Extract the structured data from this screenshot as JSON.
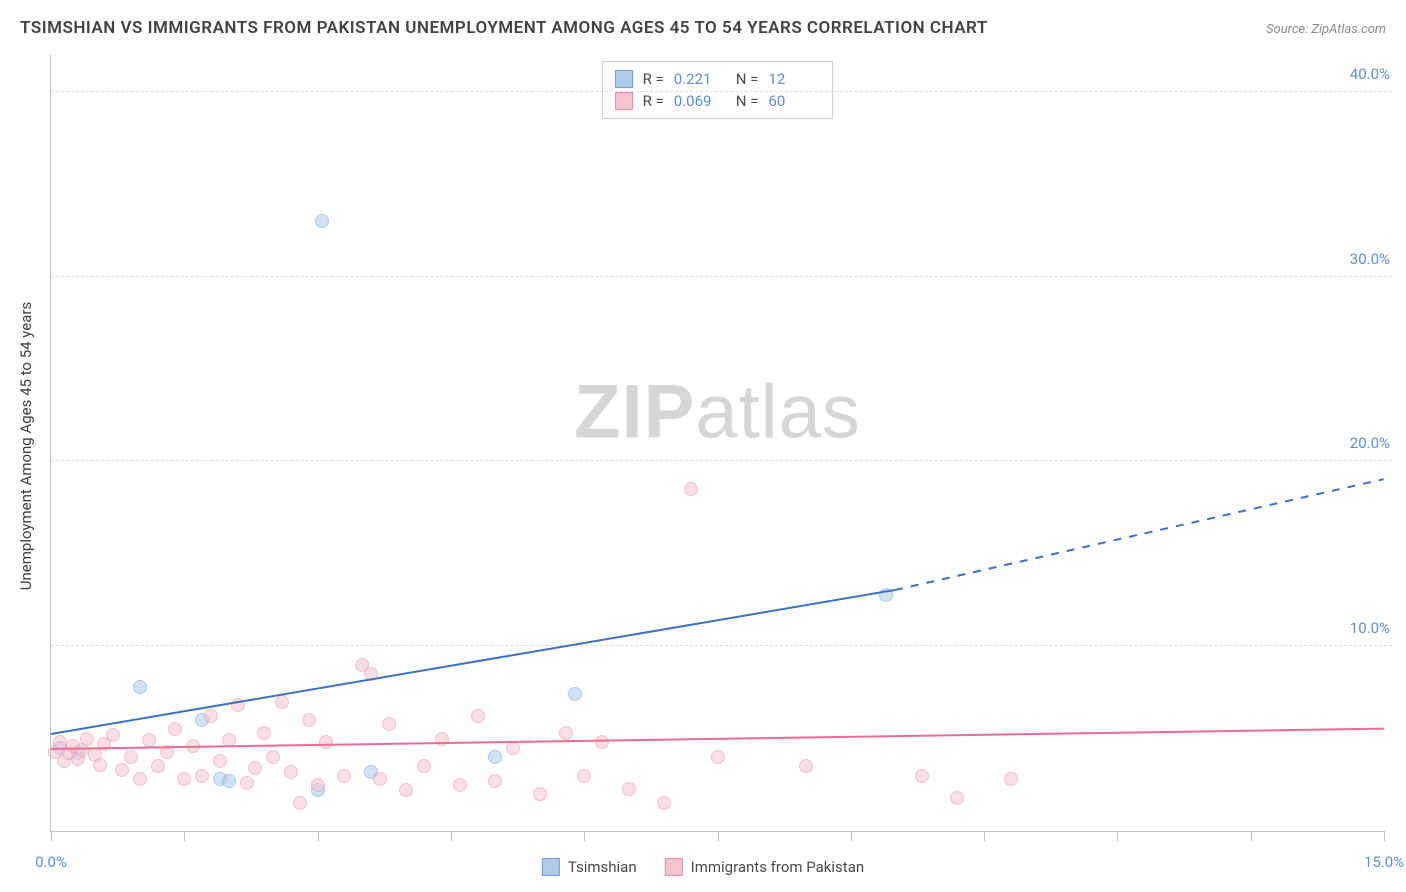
{
  "title": "TSIMSHIAN VS IMMIGRANTS FROM PAKISTAN UNEMPLOYMENT AMONG AGES 45 TO 54 YEARS CORRELATION CHART",
  "source": "Source: ZipAtlas.com",
  "watermark_zip": "ZIP",
  "watermark_atlas": "atlas",
  "yaxis_title": "Unemployment Among Ages 45 to 54 years",
  "chart": {
    "type": "scatter",
    "background_color": "#ffffff",
    "grid_color": "#dcdcdc",
    "axis_color": "#bfbfbf",
    "xlim": [
      0,
      15
    ],
    "ylim": [
      0,
      42
    ],
    "xticks": [
      0,
      1.5,
      3,
      4.5,
      6,
      7.5,
      9,
      10.5,
      12,
      13.5,
      15
    ],
    "ygrid": [
      10,
      20,
      30,
      40
    ],
    "x_labels_visible": [
      {
        "x": 0,
        "label": "0.0%"
      },
      {
        "x": 15,
        "label": "15.0%"
      }
    ],
    "y_labels_visible": [
      {
        "y": 10,
        "label": "10.0%"
      },
      {
        "y": 20,
        "label": "20.0%"
      },
      {
        "y": 30,
        "label": "30.0%"
      },
      {
        "y": 40,
        "label": "40.0%"
      }
    ],
    "tick_label_color": "#5b8fd6",
    "tick_label_fontsize": 15,
    "marker_size": 14,
    "marker_opacity": 0.55,
    "marker_stroke_width": 1,
    "series": [
      {
        "name": "Tsimshian",
        "fill_color": "#aecbee",
        "stroke_color": "#6d9fdd",
        "trend_color": "#3b72c4",
        "trend_width": 2,
        "r": "0.221",
        "n": "12",
        "trend": {
          "x1": 0,
          "y1": 5.2,
          "x2": 9.5,
          "y2": 13.0,
          "dashed_extend_x": 15,
          "dashed_extend_y": 19.0
        },
        "points": [
          {
            "x": 0.1,
            "y": 4.5
          },
          {
            "x": 0.3,
            "y": 4.2
          },
          {
            "x": 1.0,
            "y": 7.8
          },
          {
            "x": 1.7,
            "y": 6.0
          },
          {
            "x": 1.9,
            "y": 2.8
          },
          {
            "x": 2.0,
            "y": 2.7
          },
          {
            "x": 3.0,
            "y": 2.2
          },
          {
            "x": 3.05,
            "y": 33.0
          },
          {
            "x": 3.6,
            "y": 3.2
          },
          {
            "x": 5.0,
            "y": 4.0
          },
          {
            "x": 5.9,
            "y": 7.4
          },
          {
            "x": 9.4,
            "y": 12.8
          }
        ]
      },
      {
        "name": "Immigrants from Pakistan",
        "fill_color": "#f6c4d0",
        "stroke_color": "#ea8fa7",
        "trend_color": "#e86f91",
        "trend_width": 2,
        "r": "0.069",
        "n": "60",
        "trend": {
          "x1": 0,
          "y1": 4.4,
          "x2": 15,
          "y2": 5.5,
          "dashed_extend_x": null,
          "dashed_extend_y": null
        },
        "points": [
          {
            "x": 0.05,
            "y": 4.3
          },
          {
            "x": 0.1,
            "y": 4.8
          },
          {
            "x": 0.15,
            "y": 3.8
          },
          {
            "x": 0.2,
            "y": 4.2
          },
          {
            "x": 0.25,
            "y": 4.6
          },
          {
            "x": 0.3,
            "y": 3.9
          },
          {
            "x": 0.35,
            "y": 4.4
          },
          {
            "x": 0.4,
            "y": 5.0
          },
          {
            "x": 0.5,
            "y": 4.1
          },
          {
            "x": 0.55,
            "y": 3.6
          },
          {
            "x": 0.6,
            "y": 4.7
          },
          {
            "x": 0.7,
            "y": 5.2
          },
          {
            "x": 0.8,
            "y": 3.3
          },
          {
            "x": 0.9,
            "y": 4.0
          },
          {
            "x": 1.0,
            "y": 2.8
          },
          {
            "x": 1.1,
            "y": 4.9
          },
          {
            "x": 1.2,
            "y": 3.5
          },
          {
            "x": 1.3,
            "y": 4.3
          },
          {
            "x": 1.4,
            "y": 5.5
          },
          {
            "x": 1.5,
            "y": 2.8
          },
          {
            "x": 1.6,
            "y": 4.6
          },
          {
            "x": 1.7,
            "y": 3.0
          },
          {
            "x": 1.8,
            "y": 6.2
          },
          {
            "x": 1.9,
            "y": 3.8
          },
          {
            "x": 2.0,
            "y": 4.9
          },
          {
            "x": 2.1,
            "y": 6.8
          },
          {
            "x": 2.2,
            "y": 2.6
          },
          {
            "x": 2.3,
            "y": 3.4
          },
          {
            "x": 2.4,
            "y": 5.3
          },
          {
            "x": 2.5,
            "y": 4.0
          },
          {
            "x": 2.6,
            "y": 7.0
          },
          {
            "x": 2.7,
            "y": 3.2
          },
          {
            "x": 2.8,
            "y": 1.5
          },
          {
            "x": 2.9,
            "y": 6.0
          },
          {
            "x": 3.0,
            "y": 2.5
          },
          {
            "x": 3.1,
            "y": 4.8
          },
          {
            "x": 3.3,
            "y": 3.0
          },
          {
            "x": 3.5,
            "y": 9.0
          },
          {
            "x": 3.6,
            "y": 8.5
          },
          {
            "x": 3.7,
            "y": 2.8
          },
          {
            "x": 3.8,
            "y": 5.8
          },
          {
            "x": 4.0,
            "y": 2.2
          },
          {
            "x": 4.2,
            "y": 3.5
          },
          {
            "x": 4.4,
            "y": 5.0
          },
          {
            "x": 4.6,
            "y": 2.5
          },
          {
            "x": 4.8,
            "y": 6.2
          },
          {
            "x": 5.0,
            "y": 2.7
          },
          {
            "x": 5.2,
            "y": 4.5
          },
          {
            "x": 5.5,
            "y": 2.0
          },
          {
            "x": 5.8,
            "y": 5.3
          },
          {
            "x": 6.0,
            "y": 3.0
          },
          {
            "x": 6.2,
            "y": 4.8
          },
          {
            "x": 6.5,
            "y": 2.3
          },
          {
            "x": 6.9,
            "y": 1.5
          },
          {
            "x": 7.2,
            "y": 18.5
          },
          {
            "x": 7.5,
            "y": 4.0
          },
          {
            "x": 8.5,
            "y": 3.5
          },
          {
            "x": 9.8,
            "y": 3.0
          },
          {
            "x": 10.2,
            "y": 1.8
          },
          {
            "x": 10.8,
            "y": 2.8
          }
        ]
      }
    ]
  },
  "legend": {
    "r_label": "R =",
    "n_label": "N ="
  }
}
